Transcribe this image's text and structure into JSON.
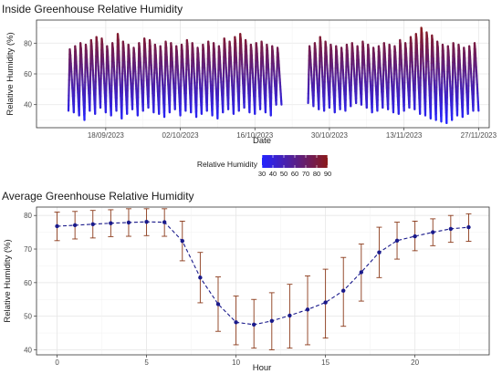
{
  "colors": {
    "low": "#2323ff",
    "high": "#8b1a1a",
    "errorbar": "#8b3a1a",
    "line": "#1a1a8b",
    "panel_border": "#333333",
    "grid_major": "#e6e6e6",
    "grid_minor": "#f2f2f2"
  },
  "chart_data": [
    {
      "type": "scatter",
      "title": "Inside Greenhouse Relative Humidity",
      "xlabel": "Date",
      "ylabel": "Relative Humidity (%)",
      "x_type": "date",
      "xlim": [
        "2023-09-05",
        "2023-11-29"
      ],
      "ylim": [
        25,
        95
      ],
      "x_ticks": [
        {
          "date": "2023-09-18",
          "label": "18/09/2023"
        },
        {
          "date": "2023-10-02",
          "label": "02/10/2023"
        },
        {
          "date": "2023-10-16",
          "label": "16/10/2023"
        },
        {
          "date": "2023-10-30",
          "label": "30/10/2023"
        },
        {
          "date": "2023-11-13",
          "label": "13/11/2023"
        },
        {
          "date": "2023-11-27",
          "label": "27/11/2023"
        }
      ],
      "y_ticks": [
        40,
        60,
        80
      ],
      "color_scale": {
        "title": "Relative Humidity",
        "min": 30,
        "max": 90,
        "ticks": [
          30,
          40,
          50,
          60,
          70,
          80,
          90
        ]
      },
      "grid": true,
      "legend": "bottom",
      "series": [
        {
          "date_start": "2023-09-11",
          "daily_min": [
            36,
            35,
            33,
            30,
            36,
            34,
            38,
            35,
            33,
            36,
            31,
            34,
            37,
            33,
            36,
            38,
            35,
            34,
            32,
            35,
            37,
            33,
            36,
            35,
            32,
            34,
            36,
            33,
            31,
            35,
            37,
            34,
            36,
            38,
            35,
            34,
            37,
            35,
            33,
            40
          ],
          "daily_max": [
            76,
            78,
            80,
            79,
            82,
            84,
            83,
            78,
            80,
            86,
            81,
            79,
            77,
            80,
            83,
            82,
            79,
            78,
            81,
            80,
            78,
            79,
            82,
            80,
            77,
            79,
            81,
            80,
            78,
            83,
            81,
            84,
            86,
            82,
            79,
            80,
            81,
            79,
            78,
            77
          ]
        },
        {
          "date_start": "2023-10-26",
          "daily_min": [
            41,
            39,
            37,
            36,
            38,
            35,
            37,
            36,
            39,
            41,
            40,
            38,
            35,
            36,
            38,
            37,
            35,
            34,
            36,
            38,
            37,
            34,
            33,
            31,
            30,
            29,
            28,
            30,
            33,
            32,
            34,
            36
          ],
          "daily_max": [
            78,
            80,
            84,
            81,
            79,
            78,
            77,
            79,
            80,
            78,
            81,
            79,
            77,
            78,
            80,
            79,
            78,
            82,
            80,
            84,
            86,
            90,
            87,
            85,
            81,
            79,
            78,
            80,
            79,
            77,
            78,
            80
          ]
        }
      ]
    },
    {
      "type": "line",
      "title": "Average Greenhouse Relative Humidity",
      "xlabel": "Hour",
      "ylabel": "Relative Humidity (%)",
      "xlim": [
        -1.15,
        24.15
      ],
      "ylim": [
        38.5,
        82.5
      ],
      "x_ticks": [
        0,
        5,
        10,
        15,
        20
      ],
      "y_ticks": [
        40,
        50,
        60,
        70,
        80
      ],
      "grid": true,
      "series": [
        {
          "x": [
            0,
            1,
            2,
            3,
            4,
            5,
            6,
            7,
            8,
            9,
            10,
            11,
            12,
            13,
            14,
            15,
            16,
            17,
            18,
            19,
            20,
            21,
            22,
            23
          ],
          "mean": [
            76.8,
            77.1,
            77.4,
            77.7,
            77.9,
            78.1,
            78.0,
            72.4,
            61.5,
            53.6,
            48.2,
            47.5,
            48.6,
            50.2,
            52.0,
            54.1,
            57.6,
            63.1,
            69.0,
            72.5,
            73.8,
            75.0,
            76.0,
            76.5
          ],
          "lower": [
            72.5,
            73.0,
            73.3,
            73.7,
            73.8,
            74.0,
            73.8,
            66.5,
            54.0,
            45.5,
            41.5,
            40.5,
            40.0,
            40.5,
            41.5,
            43.5,
            47.0,
            54.5,
            61.5,
            67.0,
            69.5,
            71.0,
            72.0,
            72.3
          ],
          "upper": [
            81.0,
            81.2,
            81.5,
            81.7,
            82.0,
            82.0,
            82.0,
            78.3,
            69.0,
            61.7,
            56.0,
            55.0,
            57.0,
            59.5,
            62.0,
            64.0,
            67.5,
            71.5,
            76.5,
            78.0,
            78.3,
            79.0,
            80.0,
            80.5
          ]
        }
      ]
    }
  ]
}
